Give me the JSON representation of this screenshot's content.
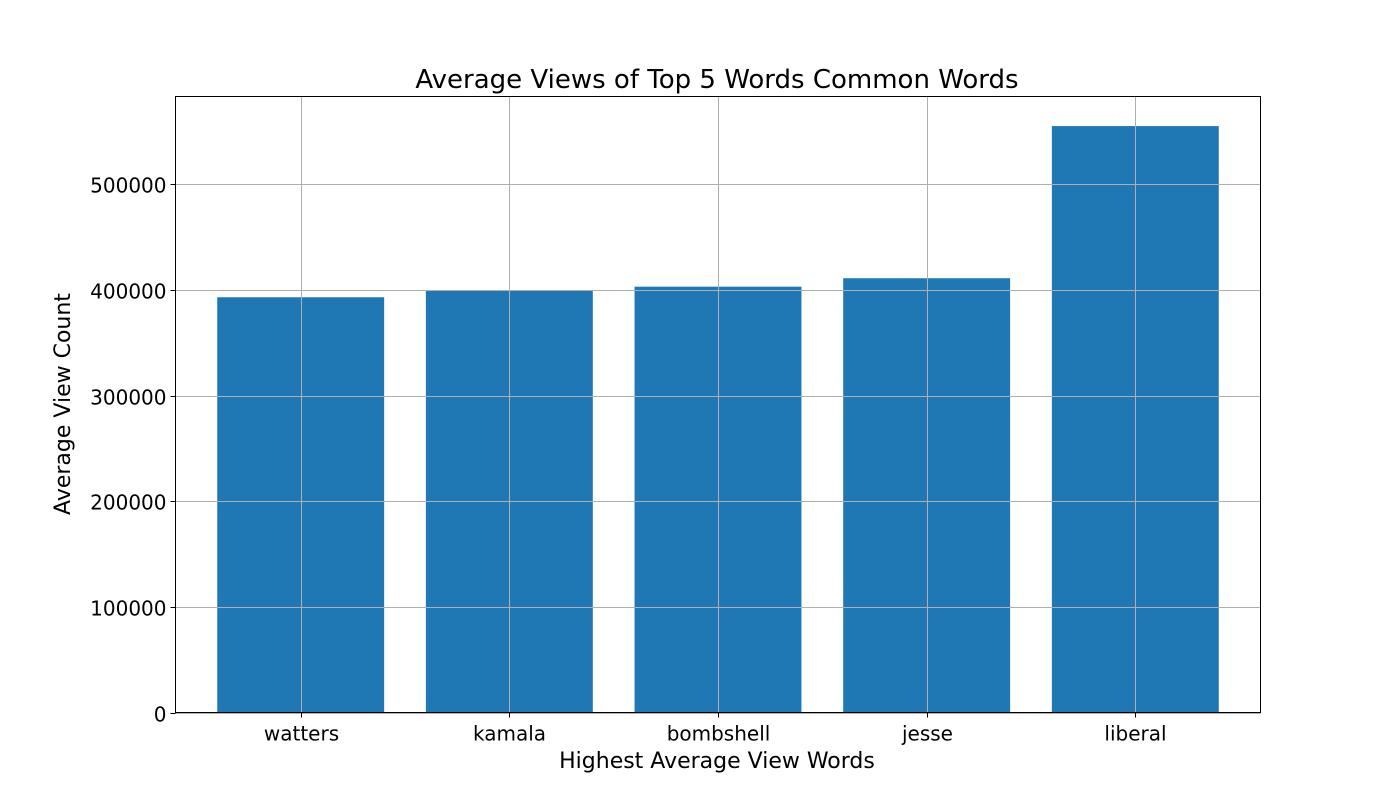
{
  "chart_data": {
    "type": "bar",
    "title": "Average Views of Top 5 Words Common Words",
    "xlabel": "Highest Average View Words",
    "ylabel": "Average View Count",
    "categories": [
      "watters",
      "kamala",
      "bombshell",
      "jesse",
      "liberal"
    ],
    "values": [
      393000,
      399000,
      403000,
      411000,
      555000
    ],
    "ylim": [
      0,
      583000
    ],
    "yticks": [
      0,
      100000,
      200000,
      300000,
      400000,
      500000
    ],
    "ytick_labels": [
      "0",
      "100000",
      "200000",
      "300000",
      "400000",
      "500000"
    ],
    "grid": true,
    "bar_color": "#1f77b4",
    "grid_color": "#b0b0b0"
  }
}
